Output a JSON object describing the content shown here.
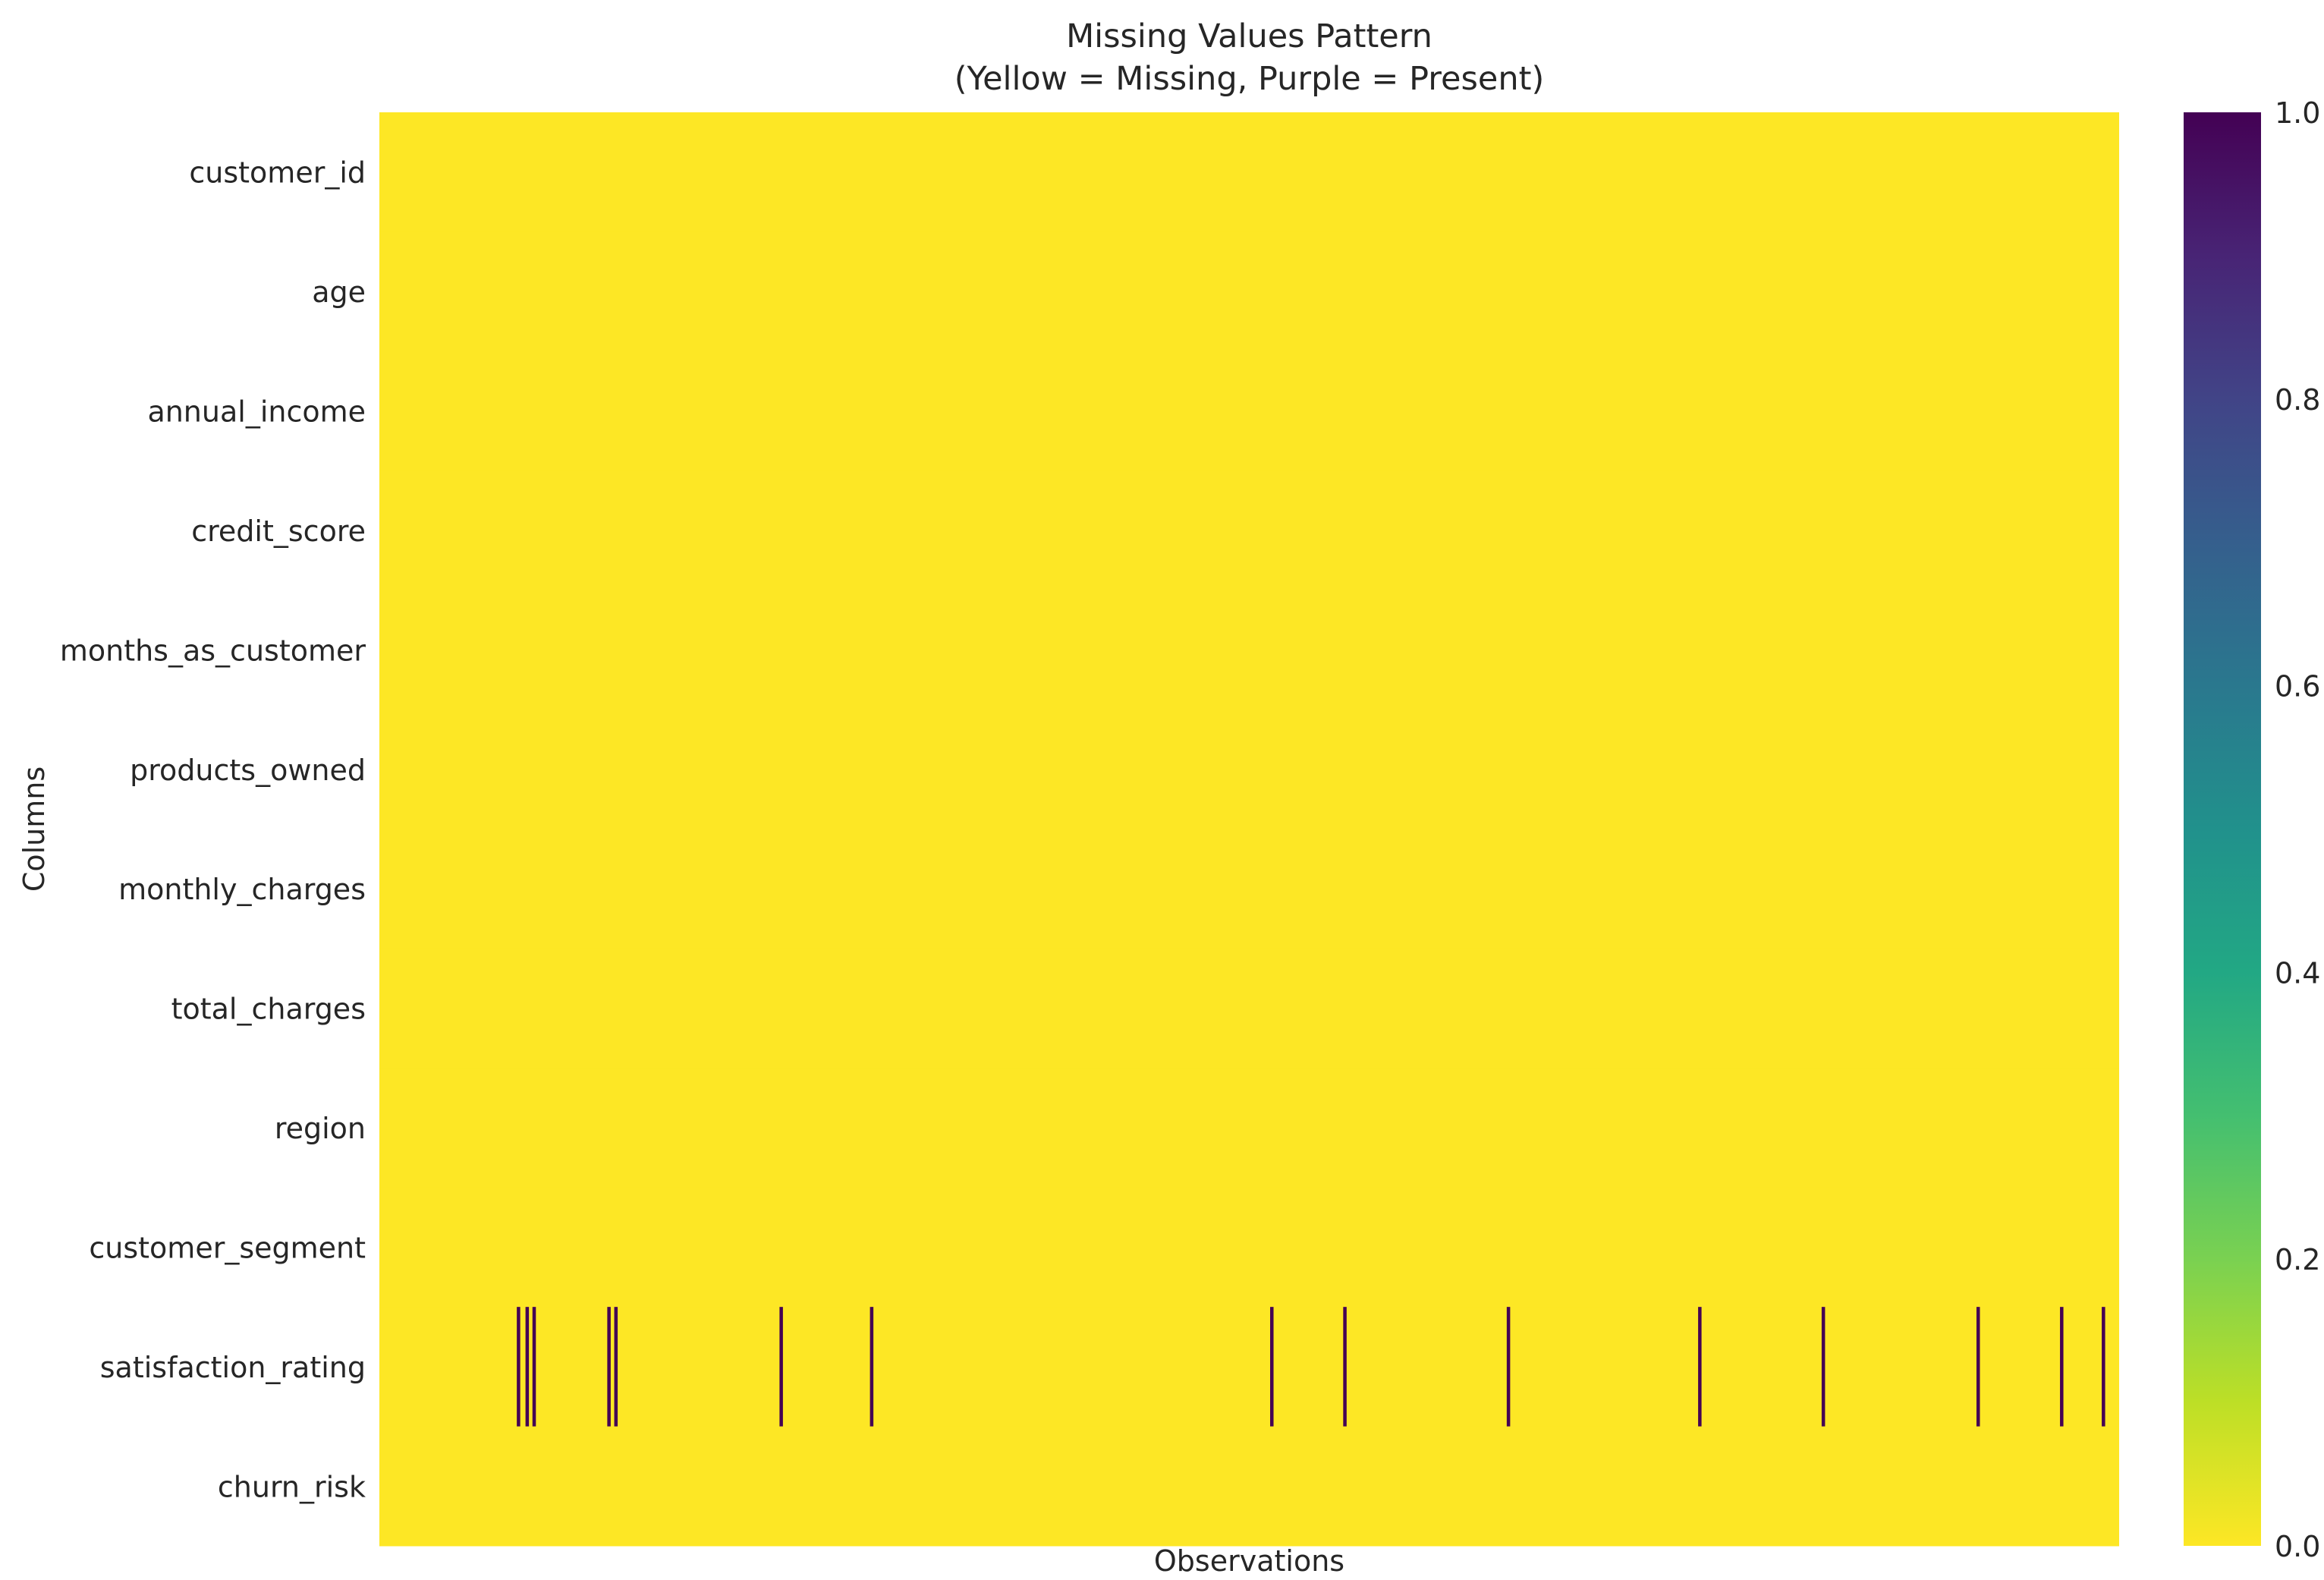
{
  "chart_data": {
    "type": "heatmap",
    "title": "Missing Values Pattern\n(Yellow = Missing, Purple = Present)",
    "xlabel": "Observations",
    "ylabel": "Columns",
    "rows": [
      "customer_id",
      "age",
      "annual_income",
      "credit_score",
      "months_as_customer",
      "products_owned",
      "monthly_charges",
      "total_charges",
      "region",
      "customer_segment",
      "satisfaction_rating",
      "churn_risk"
    ],
    "n_observations": 1000,
    "background_value": 0,
    "marked_cells": [
      {
        "row": "satisfaction_rating",
        "value": 1,
        "observations": [
          79,
          84,
          88,
          131,
          135,
          230,
          282,
          512,
          554,
          648,
          758,
          829,
          918,
          966,
          990
        ]
      }
    ],
    "colorbar": {
      "colormap": "viridis_r",
      "range": [
        0,
        1
      ],
      "ticks": [
        "0.0",
        "0.2",
        "0.4",
        "0.6",
        "0.8",
        "1.0"
      ]
    },
    "grid": false
  }
}
